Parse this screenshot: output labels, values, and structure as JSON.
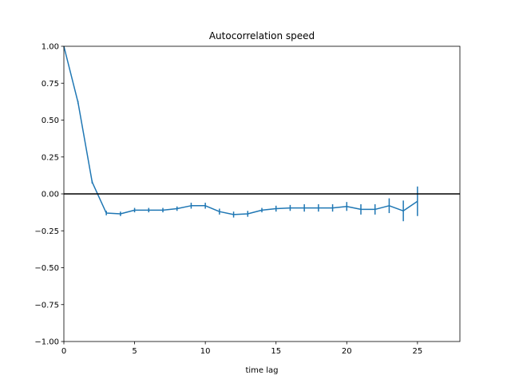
{
  "chart_data": {
    "type": "line",
    "title": "Autocorrelation speed",
    "xlabel": "time lag",
    "ylabel": "",
    "xlim": [
      0,
      28
    ],
    "ylim": [
      -1.0,
      1.0
    ],
    "xticks": [
      0,
      5,
      10,
      15,
      20,
      25
    ],
    "xtick_labels": [
      "0",
      "5",
      "10",
      "15",
      "20",
      "25"
    ],
    "yticks": [
      -1.0,
      -0.75,
      -0.5,
      -0.25,
      0.0,
      0.25,
      0.5,
      0.75,
      1.0
    ],
    "ytick_labels": [
      "−1.00",
      "−0.75",
      "−0.50",
      "−0.25",
      "0.00",
      "0.25",
      "0.50",
      "0.75",
      "1.00"
    ],
    "grid": false,
    "reference_line": {
      "y": 0.0,
      "color": "#000000"
    },
    "series": [
      {
        "color": "#1f77b4",
        "x": [
          0,
          1,
          2,
          3,
          4,
          5,
          6,
          7,
          8,
          9,
          10,
          11,
          12,
          13,
          14,
          15,
          16,
          17,
          18,
          19,
          20,
          21,
          22,
          23,
          24,
          25
        ],
        "y": [
          1.0,
          0.62,
          0.08,
          -0.13,
          -0.135,
          -0.11,
          -0.11,
          -0.11,
          -0.1,
          -0.08,
          -0.08,
          -0.12,
          -0.14,
          -0.135,
          -0.11,
          -0.1,
          -0.095,
          -0.095,
          -0.095,
          -0.095,
          -0.085,
          -0.105,
          -0.105,
          -0.08,
          -0.115,
          -0.05
        ],
        "yerr": [
          0.0,
          0.01,
          0.01,
          0.015,
          0.015,
          0.015,
          0.015,
          0.015,
          0.015,
          0.02,
          0.02,
          0.02,
          0.02,
          0.02,
          0.015,
          0.02,
          0.02,
          0.025,
          0.025,
          0.025,
          0.03,
          0.035,
          0.035,
          0.05,
          0.07,
          0.1
        ]
      }
    ]
  }
}
